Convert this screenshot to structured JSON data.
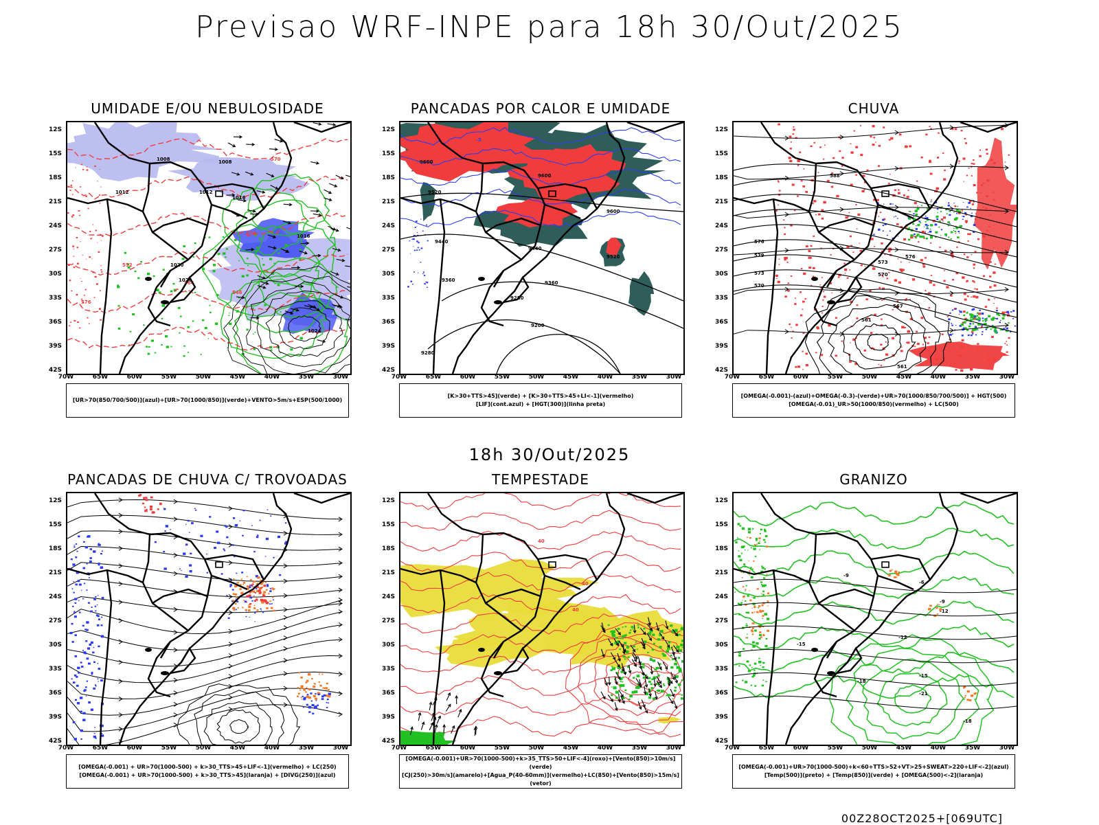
{
  "header": {
    "title": "Previsao WRF-INPE  para 18h 30/Out/2025",
    "mid_title": "18h 30/Out/2025",
    "footer_stamp": "00Z28OCT2025+[069UTC]"
  },
  "axes": {
    "lat_labels": [
      "12S",
      "15S",
      "18S",
      "21S",
      "24S",
      "27S",
      "30S",
      "33S",
      "36S",
      "39S",
      "42S"
    ],
    "lon_labels": [
      "70W",
      "65W",
      "60W",
      "55W",
      "50W",
      "45W",
      "40W",
      "35W",
      "30W"
    ]
  },
  "colors": {
    "red": "#f03c3c",
    "green": "#22c022",
    "blue": "#2b3cf0",
    "lavender": "#b7b8f0",
    "darkteal": "#2f5e5a",
    "yellow": "#e8dc3a",
    "orange": "#f07a28",
    "black": "#000000"
  },
  "panels": [
    {
      "id": "umidade",
      "title": "UMIDADE E/OU NEBULOSIDADE",
      "legend_lines": [
        "[UR>70(850/700/500)](azul)+[UR>70(1000/850)](verde)+VENTO>5m/s+ESP(500/1000)"
      ],
      "contour_labels": [
        "1008",
        "1008",
        "1012",
        "1012",
        "1016",
        "1016",
        "1020",
        "1020",
        "1024",
        "576",
        "570",
        "564",
        "558",
        "552",
        "546"
      ]
    },
    {
      "id": "pancadas-calor",
      "title": "PANCADAS POR CALOR E UMIDADE",
      "legend_lines": [
        "[K>30+TTS>45](verde) + [K>30+TTS>45+LI<-1](vermelho)",
        "[LIF](cont.azul) + [HGT(300)](linha preta)"
      ],
      "contour_labels": [
        "9600",
        "9600",
        "9520",
        "9440",
        "9440",
        "9360",
        "9360",
        "9280",
        "9280",
        "9200",
        "9520",
        "9600",
        "-3"
      ]
    },
    {
      "id": "chuva",
      "title": "CHUVA",
      "legend_lines": [
        "[OMEGA(-0.001)-(azul)+OMEGA(-0.3)-(verde)+UR>70(1000/850/700/500)] + HGT(500)",
        "[OMEGA(-0.01)_UR>50(1000/850)(vermelho) + LC(500)"
      ],
      "contour_labels": [
        "588",
        "576",
        "579",
        "573",
        "570",
        "567",
        "561",
        "561",
        "576",
        "573",
        "570"
      ]
    },
    {
      "id": "pancadas-trovoadas",
      "title": "PANCADAS DE CHUVA C/ TROVOADAS",
      "legend_lines": [
        "[OMEGA(-0.001) + UR>70(1000-500) + k>30_TTS>45+LIF<-1](vermelho) + LC(250)",
        "[OMEGA(-0.001) + UR>70(1000-500) + k>30_TTS>45](laranja) + [DIVG(250)](azul)"
      ],
      "contour_labels": []
    },
    {
      "id": "tempestade",
      "title": "TEMPESTADE",
      "legend_lines": [
        "[OMEGA(-0.001)+UR>70(1000-500)+k>35_TTS>50+LIF<-4](roxo)+[Vento(850)>10m/s](verde)",
        "[CJ(250)>30m/s](amarelo)+[Agua_P(40-60mm)](vermelho)+LC(850)+[Vento(850)>15m/s](vetor)"
      ],
      "contour_labels": [
        "40",
        "40",
        "40"
      ]
    },
    {
      "id": "granizo",
      "title": "GRANIZO",
      "legend_lines": [
        "[OMEGA(-0.001)+UR>70(1000-500)+k<60+TTS>52+VT>25+SWEAT>220+LIF<-2](azul)",
        "[Temp(500)](preto) + [Temp(850)](verde) + [OMEGA(500)<-2](laranja)"
      ],
      "contour_labels": [
        "-6",
        "-9",
        "-12",
        "-15",
        "-15",
        "-18",
        "-21",
        "-18",
        "-12",
        "-9"
      ]
    }
  ]
}
